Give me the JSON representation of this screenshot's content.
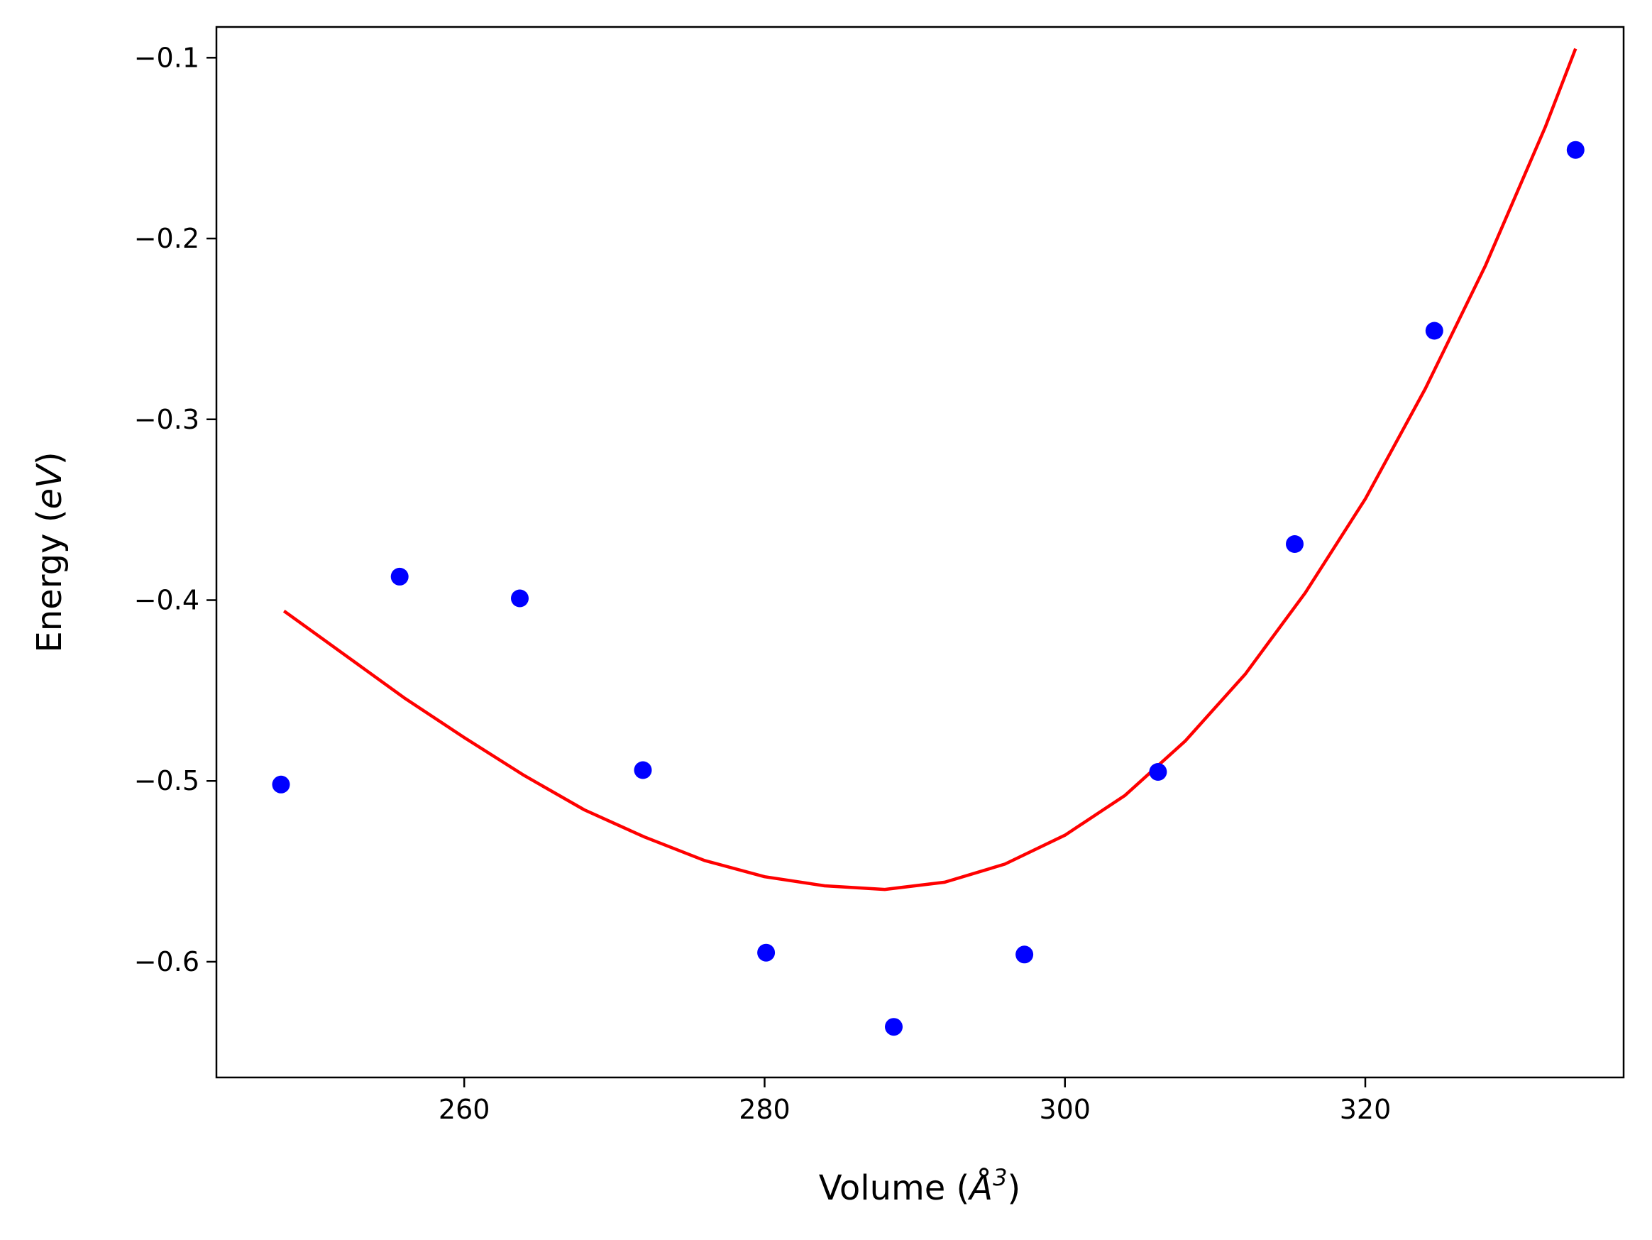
{
  "chart_data": {
    "type": "scatter",
    "xlabel": "Volume (Å³)",
    "xlabel_parts": {
      "main": "Volume (",
      "symbol": "Å",
      "sup": "3",
      "close": ")"
    },
    "ylabel": "Energy (eV)",
    "ylabel_parts": {
      "main": "Energy (",
      "italic": "eV",
      "close": ")"
    },
    "xlim": [
      243.5,
      337.2
    ],
    "ylim": [
      -0.664,
      -0.083
    ],
    "xticks": [
      260,
      280,
      300,
      320
    ],
    "xtick_labels": [
      "260",
      "280",
      "300",
      "320"
    ],
    "yticks": [
      -0.1,
      -0.2,
      -0.3,
      -0.4,
      -0.5,
      -0.6
    ],
    "ytick_labels": [
      "−0.1",
      "−0.2",
      "−0.3",
      "−0.4",
      "−0.5",
      "−0.6"
    ],
    "grid": false,
    "legend": "none",
    "series": [
      {
        "kind": "scatter",
        "color": "#0000ff",
        "x": [
          247.8,
          255.7,
          263.7,
          271.9,
          280.1,
          288.6,
          297.3,
          306.2,
          315.3,
          324.6,
          334.0
        ],
        "y": [
          -0.502,
          -0.387,
          -0.399,
          -0.494,
          -0.595,
          -0.636,
          -0.596,
          -0.495,
          -0.369,
          -0.251,
          -0.151
        ]
      },
      {
        "kind": "line",
        "color": "#ff0000",
        "x": [
          248,
          252,
          256,
          260,
          264,
          268,
          272,
          276,
          280,
          284,
          288,
          292,
          296,
          300,
          304,
          308,
          312,
          316,
          320,
          324,
          328,
          332,
          334
        ],
        "y": [
          -0.406,
          -0.43,
          -0.454,
          -0.476,
          -0.497,
          -0.516,
          -0.531,
          -0.544,
          -0.553,
          -0.558,
          -0.56,
          -0.556,
          -0.546,
          -0.53,
          -0.508,
          -0.478,
          -0.441,
          -0.396,
          -0.344,
          -0.283,
          -0.215,
          -0.138,
          -0.095
        ]
      }
    ]
  }
}
